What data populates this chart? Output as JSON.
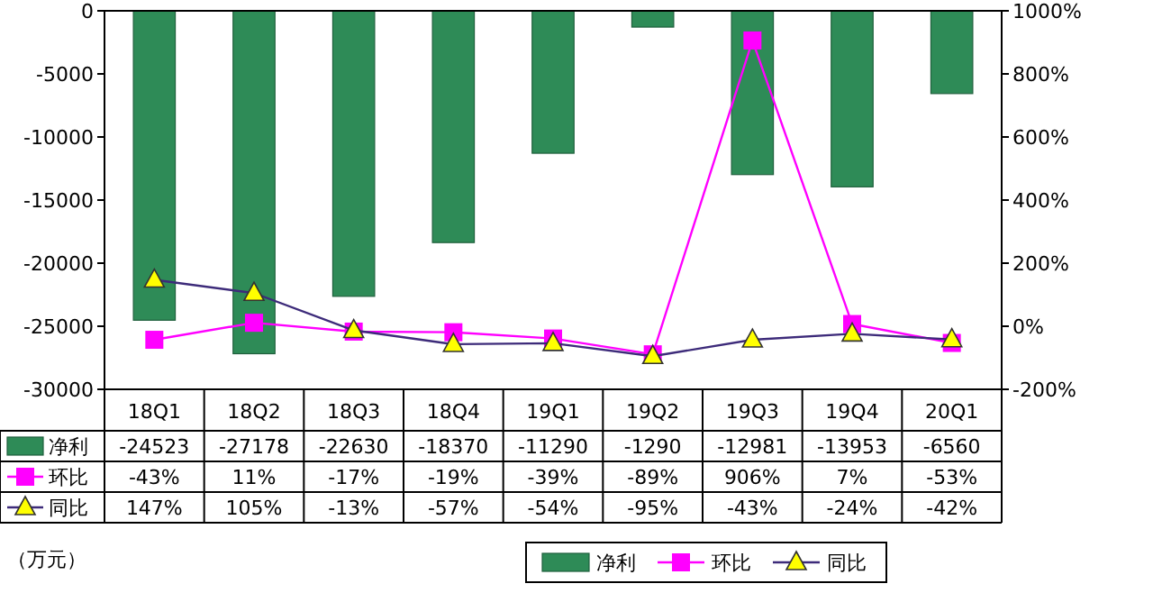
{
  "chart_data": {
    "type": "bar",
    "categories": [
      "18Q1",
      "18Q2",
      "18Q3",
      "18Q4",
      "19Q1",
      "19Q2",
      "19Q3",
      "19Q4",
      "20Q1"
    ],
    "series": [
      {
        "name": "净利",
        "color": "#2e8b57",
        "values": [
          -24523,
          -27178,
          -22630,
          -18370,
          -11290,
          -1290,
          -12981,
          -13953,
          -6560
        ],
        "value_labels": [
          "-24523",
          "-27178",
          "-22630",
          "-18370",
          "-11290",
          "-1290",
          "-12981",
          "-13953",
          "-6560"
        ]
      },
      {
        "name": "环比",
        "type": "line",
        "axis": "y2",
        "marker": "square",
        "color": "#ff00ff",
        "values": [
          -43,
          11,
          -17,
          -19,
          -39,
          -89,
          906,
          7,
          -53
        ],
        "value_labels": [
          "-43%",
          "11%",
          "-17%",
          "-19%",
          "-39%",
          "-89%",
          "906%",
          "7%",
          "-53%"
        ]
      },
      {
        "name": "同比",
        "type": "line",
        "axis": "y2",
        "marker": "triangle",
        "color": "#ffff00",
        "values": [
          147,
          105,
          -13,
          -57,
          -54,
          -95,
          -43,
          -24,
          -42
        ],
        "value_labels": [
          "147%",
          "105%",
          "-13%",
          "-57%",
          "-54%",
          "-95%",
          "-43%",
          "-24%",
          "-42%"
        ]
      }
    ],
    "ylim": [
      -30000,
      0
    ],
    "yticks": [
      -30000,
      -25000,
      -20000,
      -15000,
      -10000,
      -5000,
      0
    ],
    "y2lim": [
      -200,
      1000
    ],
    "y2ticks": [
      {
        "value": -200,
        "label": "-200%"
      },
      {
        "value": 0,
        "label": "0%"
      },
      {
        "value": 200,
        "label": "200%"
      },
      {
        "value": 400,
        "label": "400%"
      },
      {
        "value": 600,
        "label": "600%"
      },
      {
        "value": 800,
        "label": "800%"
      },
      {
        "value": 1000,
        "label": "1000%"
      }
    ],
    "legend": "bottom",
    "grid": false,
    "annotations": [
      "（万元）"
    ]
  }
}
